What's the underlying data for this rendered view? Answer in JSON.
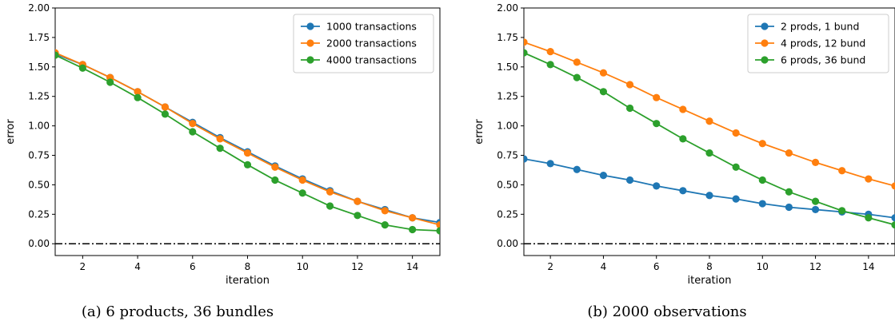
{
  "colors": {
    "blue": "#1f77b4",
    "orange": "#ff7f0e",
    "green": "#2ca02c",
    "zero_line": "#000000"
  },
  "chart_data": [
    {
      "type": "line",
      "caption": "(a) 6 products, 36 bundles",
      "xlabel": "iteration",
      "ylabel": "error",
      "xlim": [
        1,
        15
      ],
      "ylim": [
        -0.1,
        2.0
      ],
      "xticks": [
        2,
        4,
        6,
        8,
        10,
        12,
        14
      ],
      "yticks": [
        0.0,
        0.25,
        0.5,
        0.75,
        1.0,
        1.25,
        1.5,
        1.75,
        2.0
      ],
      "ytick_labels": [
        "0.00",
        "0.25",
        "0.50",
        "0.75",
        "1.00",
        "1.25",
        "1.50",
        "1.75",
        "2.00"
      ],
      "legend_position": "top-right",
      "reference_line": {
        "y": 0.0,
        "style": "dash-dot"
      },
      "x": [
        1,
        2,
        3,
        4,
        5,
        6,
        7,
        8,
        9,
        10,
        11,
        12,
        13,
        14,
        15
      ],
      "series": [
        {
          "name": "1000 transactions",
          "color": "#1f77b4",
          "values": [
            1.61,
            1.52,
            1.41,
            1.29,
            1.16,
            1.03,
            0.9,
            0.78,
            0.66,
            0.55,
            0.45,
            0.36,
            0.29,
            0.22,
            0.18
          ]
        },
        {
          "name": "2000 transactions",
          "color": "#ff7f0e",
          "values": [
            1.62,
            1.52,
            1.41,
            1.29,
            1.16,
            1.02,
            0.89,
            0.77,
            0.65,
            0.54,
            0.44,
            0.36,
            0.28,
            0.22,
            0.16
          ]
        },
        {
          "name": "4000 transactions",
          "color": "#2ca02c",
          "values": [
            1.6,
            1.49,
            1.37,
            1.24,
            1.1,
            0.95,
            0.81,
            0.67,
            0.54,
            0.43,
            0.32,
            0.24,
            0.16,
            0.12,
            0.11
          ]
        }
      ]
    },
    {
      "type": "line",
      "caption": "(b) 2000 observations",
      "xlabel": "iteration",
      "ylabel": "error",
      "xlim": [
        1,
        15
      ],
      "ylim": [
        -0.1,
        2.0
      ],
      "xticks": [
        2,
        4,
        6,
        8,
        10,
        12,
        14
      ],
      "yticks": [
        0.0,
        0.25,
        0.5,
        0.75,
        1.0,
        1.25,
        1.5,
        1.75,
        2.0
      ],
      "ytick_labels": [
        "0.00",
        "0.25",
        "0.50",
        "0.75",
        "1.00",
        "1.25",
        "1.50",
        "1.75",
        "2.00"
      ],
      "legend_position": "top-right",
      "reference_line": {
        "y": 0.0,
        "style": "dash-dot"
      },
      "x": [
        1,
        2,
        3,
        4,
        5,
        6,
        7,
        8,
        9,
        10,
        11,
        12,
        13,
        14,
        15
      ],
      "series": [
        {
          "name": "2 prods, 1 bund",
          "color": "#1f77b4",
          "values": [
            0.72,
            0.68,
            0.63,
            0.58,
            0.54,
            0.49,
            0.45,
            0.41,
            0.38,
            0.34,
            0.31,
            0.29,
            0.27,
            0.25,
            0.22
          ]
        },
        {
          "name": "4 prods, 12 bund",
          "color": "#ff7f0e",
          "values": [
            1.71,
            1.63,
            1.54,
            1.45,
            1.35,
            1.24,
            1.14,
            1.04,
            0.94,
            0.85,
            0.77,
            0.69,
            0.62,
            0.55,
            0.49
          ]
        },
        {
          "name": "6 prods, 36 bund",
          "color": "#2ca02c",
          "values": [
            1.62,
            1.52,
            1.41,
            1.29,
            1.15,
            1.02,
            0.89,
            0.77,
            0.65,
            0.54,
            0.44,
            0.36,
            0.28,
            0.22,
            0.16
          ]
        }
      ]
    }
  ]
}
